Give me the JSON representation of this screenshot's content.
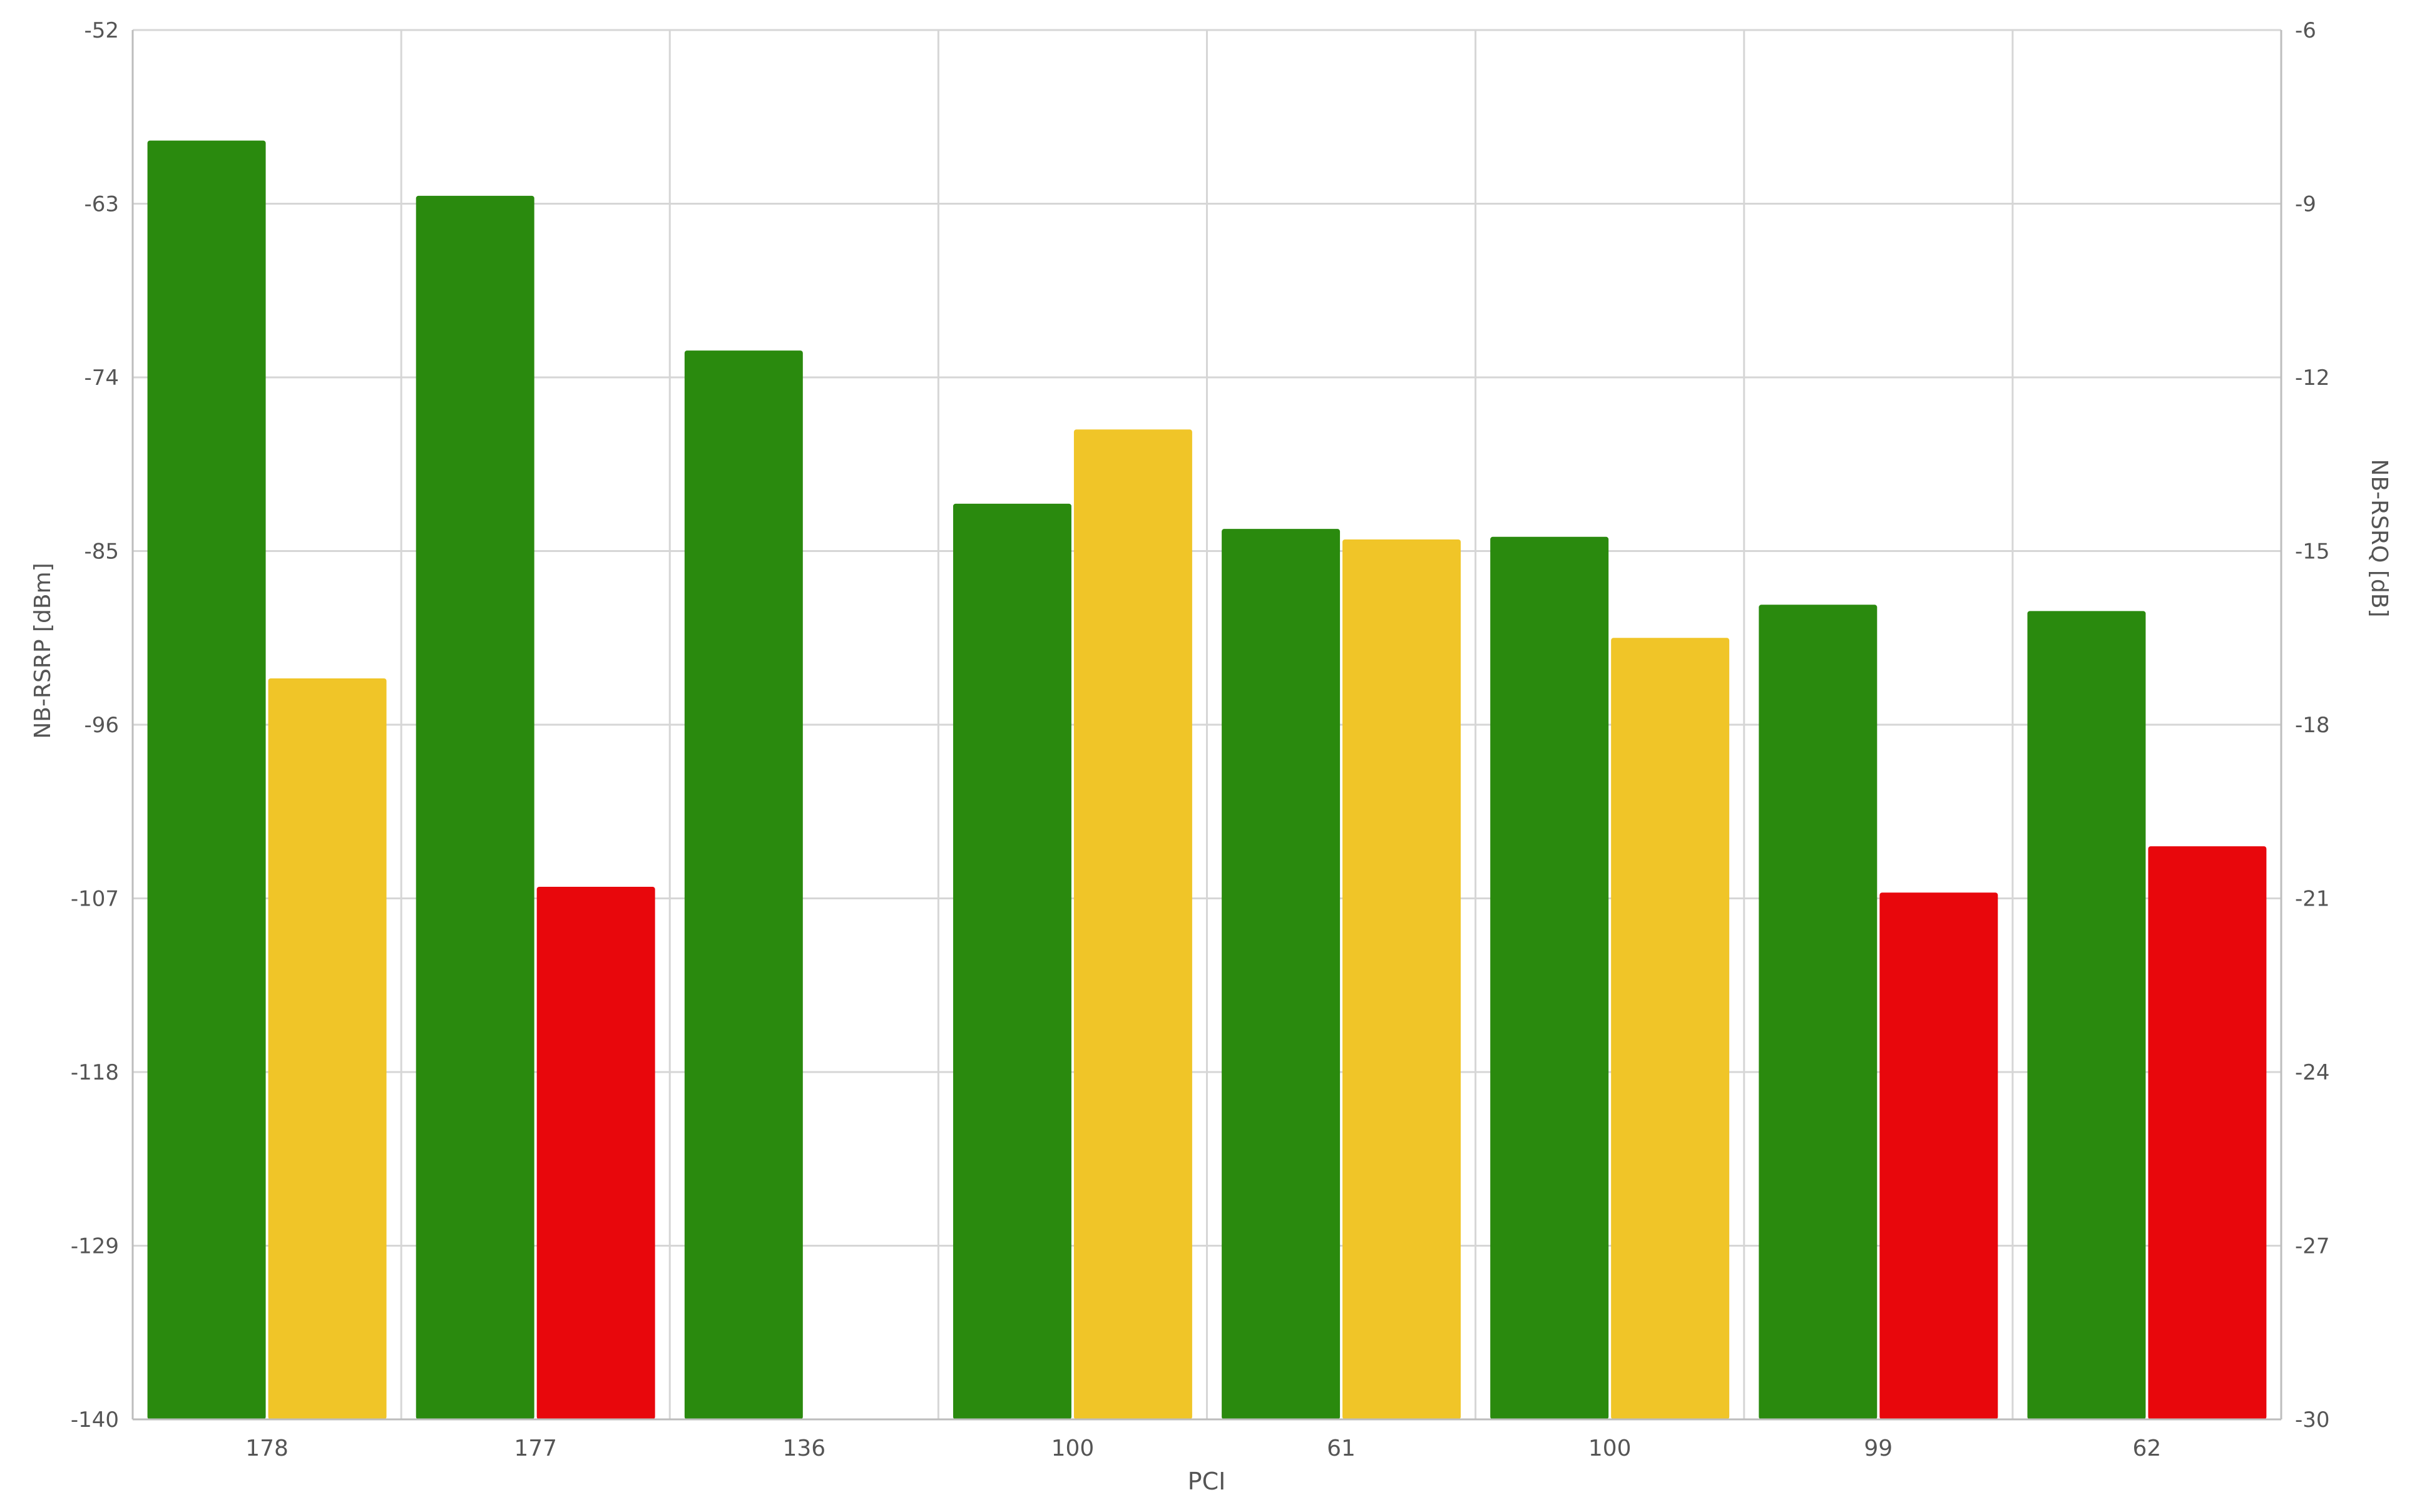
{
  "chart_data": {
    "type": "bar",
    "xlabel": "PCI",
    "ylabel_left": "NB-RSRP [dBm]",
    "ylabel_right": "NB-RSRQ [dB]",
    "categories": [
      "178",
      "177",
      "136",
      "100",
      "61",
      "100",
      "99",
      "62"
    ],
    "ylim_left": [
      -140,
      -52
    ],
    "yticks_left": [
      -52,
      -63,
      -74,
      -85,
      -96,
      -107,
      -118,
      -129,
      -140
    ],
    "ylim_right": [
      -30,
      -6
    ],
    "yticks_right": [
      -6,
      -9,
      -12,
      -15,
      -18,
      -21,
      -24,
      -27,
      -30
    ],
    "grid": true,
    "legend": "none",
    "series": [
      {
        "axis": "left",
        "values": [
          -59,
          -62.5,
          -72.3,
          -82,
          -83.6,
          -84.1,
          -88.4,
          -88.8
        ],
        "colors": [
          "#2a8a0e",
          "#2a8a0e",
          "#2a8a0e",
          "#2a8a0e",
          "#2a8a0e",
          "#2a8a0e",
          "#2a8a0e",
          "#2a8a0e"
        ]
      },
      {
        "axis": "right",
        "values": [
          -17.2,
          -20.8,
          null,
          -12.9,
          -14.8,
          -16.5,
          -20.9,
          -20.1
        ],
        "colors": [
          "#f0c528",
          "#e8070c",
          null,
          "#f0c528",
          "#f0c528",
          "#f0c528",
          "#e8070c",
          "#e8070c"
        ]
      }
    ]
  }
}
